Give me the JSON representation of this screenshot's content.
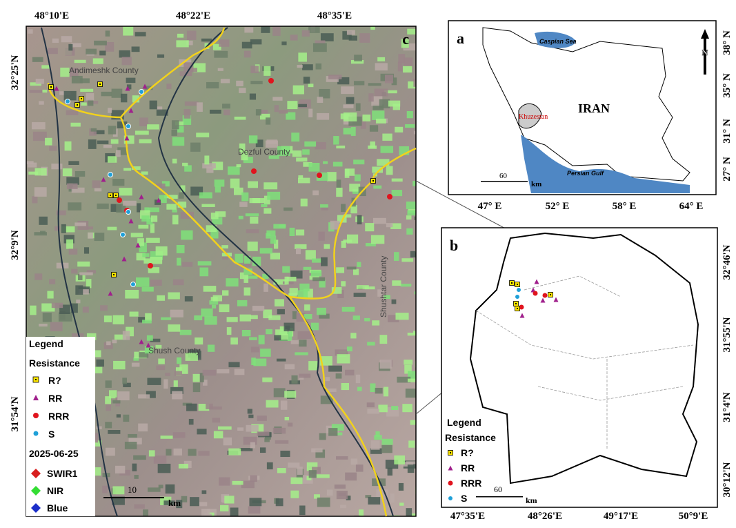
{
  "panel_c": {
    "label": "c",
    "top_ticks": [
      "48°10'E",
      "48°22'E",
      "48°35'E"
    ],
    "left_ticks": [
      "32°25'N",
      "32°9'N",
      "31°54'N"
    ],
    "counties": [
      "Andimeshk County",
      "Dezful County",
      "Shushtar County",
      "Shush County"
    ],
    "legend": {
      "title": "Legend",
      "group": "Resistance",
      "items": [
        "R?",
        "RR",
        "RRR",
        "S"
      ],
      "date": "2025-06-25",
      "bands": [
        "SWIR1",
        "NIR",
        "Blue"
      ]
    },
    "scale": {
      "value": "10",
      "unit": "km"
    }
  },
  "panel_a": {
    "label": "a",
    "places": {
      "sea": "Caspian Sea",
      "country": "IRAN",
      "province": "Khuzestan",
      "gulf": "Persian Gulf"
    },
    "north": "N",
    "scale": {
      "value": "60",
      "unit": "km"
    },
    "bottom_ticks": [
      "47° E",
      "52° E",
      "58° E",
      "64° E"
    ],
    "right_ticks": [
      "38° N",
      "35° N",
      "31° N",
      "27° N"
    ]
  },
  "panel_b": {
    "label": "b",
    "legend": {
      "title": "Legend",
      "group": "Resistance",
      "items": [
        "R?",
        "RR",
        "RRR",
        "S"
      ]
    },
    "scale": {
      "value": "60",
      "unit": "km"
    },
    "bottom_ticks": [
      "47°35'E",
      "48°26'E",
      "49°17'E",
      "50°9'E"
    ],
    "right_ticks": [
      "32°46'N",
      "31°55'N",
      "31°4'N",
      "30°12'N"
    ]
  }
}
